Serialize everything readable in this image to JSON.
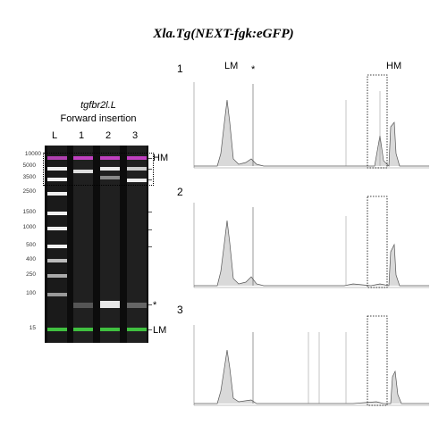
{
  "title": "Xla.Tg(NEXT-fgk:eGFP)",
  "gel": {
    "gene": "tgfbr2l.L",
    "subtitle": "Forward insertion",
    "lanes": [
      "L",
      "1",
      "2",
      "3"
    ],
    "ladder": [
      "10000",
      "5000",
      "3500",
      "2500",
      "1500",
      "1000",
      "500",
      "400",
      "250",
      "100",
      "15"
    ],
    "hm_label": "HM",
    "lm_label": "LM",
    "star_label": "*"
  },
  "electropherogram": {
    "lm_label": "LM",
    "hm_label": "HM",
    "star_label": "*",
    "panels": [
      {
        "number": "1"
      },
      {
        "number": "2"
      },
      {
        "number": "3"
      }
    ]
  },
  "colors": {
    "hm_band": "#c040c0",
    "lm_band": "#40c040",
    "peak_fill": "#d9d9d9",
    "gel_bg": "#0c0c0c"
  }
}
